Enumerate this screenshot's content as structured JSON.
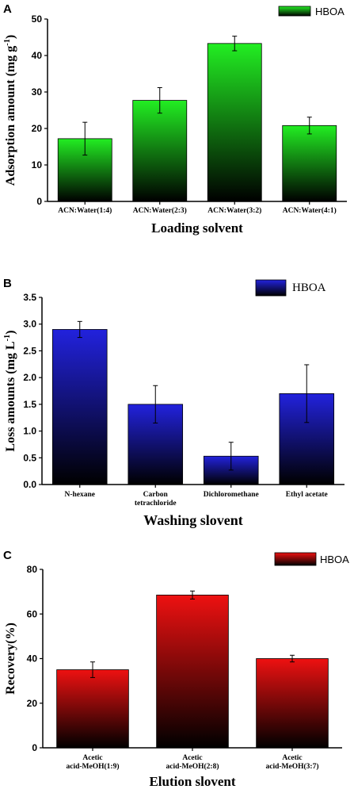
{
  "chart_data": [
    {
      "panel": "A",
      "type": "bar",
      "categories": [
        "ACN:Water(1:4)",
        "ACN:Water(2:3)",
        "ACN:Water(3:2)",
        "ACN:Water(4:1)"
      ],
      "series": [
        {
          "name": "HBOA",
          "values": [
            17.2,
            27.7,
            43.3,
            20.8
          ],
          "errors": [
            4.5,
            3.5,
            2.0,
            2.3
          ]
        }
      ],
      "xlabel": "Loading solvent",
      "ylabel": "Adsorption amount (mg g",
      "ylabel_sup": "-1",
      "ylabel_tail": ")",
      "ylim": [
        0,
        50
      ],
      "yticks": [
        "0",
        "10",
        "20",
        "30",
        "40",
        "50"
      ],
      "legend": "top-right",
      "color": "#22ee22"
    },
    {
      "panel": "B",
      "type": "bar",
      "categories": [
        "N-hexane",
        "Carbon tetrachloride",
        "Dichloromethane",
        "Ethyl acetate"
      ],
      "category_lines": [
        [
          "N-hexane"
        ],
        [
          "Carbon",
          "tetrachloride"
        ],
        [
          "Dichloromethane"
        ],
        [
          "Ethyl acetate"
        ]
      ],
      "series": [
        {
          "name": "HBOA",
          "values": [
            2.9,
            1.5,
            0.53,
            1.7
          ],
          "errors": [
            0.15,
            0.35,
            0.26,
            0.54
          ]
        }
      ],
      "xlabel": "Washing slovent",
      "ylabel": "Loss amounts (mg L",
      "ylabel_sup": "-1",
      "ylabel_tail": ")",
      "ylim": [
        0,
        3.5
      ],
      "yticks": [
        "0.0",
        "0.5",
        "1.0",
        "1.5",
        "2.0",
        "2.5",
        "3.0",
        "3.5"
      ],
      "legend": "top-right",
      "color": "#2222dd"
    },
    {
      "panel": "C",
      "type": "bar",
      "categories": [
        "Acetic acid-MeOH(1:9)",
        "Acetic acid-MeOH(2:8)",
        "Acetic acid-MeOH(3:7)"
      ],
      "category_lines": [
        [
          "Acetic",
          "acid-MeOH(1:9)"
        ],
        [
          "Acetic",
          "acid-MeOH(2:8)"
        ],
        [
          "Acetic",
          "acid-MeOH(3:7)"
        ]
      ],
      "series": [
        {
          "name": "HBOA",
          "values": [
            35.0,
            68.5,
            40.0
          ],
          "errors": [
            3.5,
            1.8,
            1.5
          ]
        }
      ],
      "xlabel": "Elution slovent",
      "ylabel": "Recovery(%)",
      "ylabel_sup": "",
      "ylabel_tail": "",
      "ylim": [
        0,
        80
      ],
      "yticks": [
        "0",
        "20",
        "40",
        "60",
        "80"
      ],
      "legend": "top-right",
      "color": "#ee1111"
    }
  ]
}
